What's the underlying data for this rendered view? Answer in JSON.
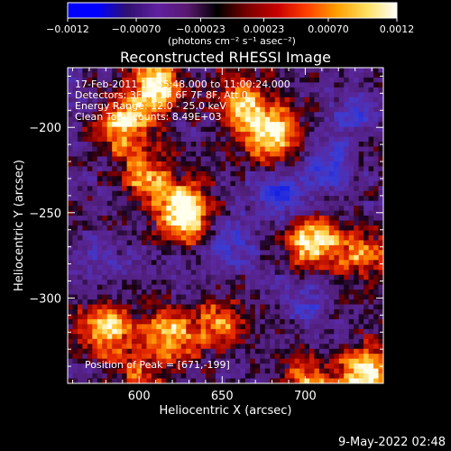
{
  "chart_data": {
    "type": "heatmap",
    "title": "Reconstructed RHESSI Image",
    "xlabel": "Heliocentric X (arcsec)",
    "ylabel": "Heliocentric Y (arcsec)",
    "xlim": [
      557,
      747
    ],
    "ylim": [
      -350,
      -165
    ],
    "x_ticks": [
      600,
      650,
      700
    ],
    "y_ticks": [
      -200,
      -250,
      -300
    ],
    "colorbar": {
      "range": [
        -0.0012,
        0.0012
      ],
      "ticks": [
        {
          "value": -0.0012,
          "label": "−0.0012"
        },
        {
          "value": -0.0007,
          "label": "−0.00070"
        },
        {
          "value": -0.00023,
          "label": "−0.00023"
        },
        {
          "value": 0.00023,
          "label": "0.00023"
        },
        {
          "value": 0.0007,
          "label": "0.00070"
        },
        {
          "value": 0.0012,
          "label": "0.0012"
        }
      ],
      "label": "(photons cm⁻² s⁻¹ asec⁻²)",
      "colors": [
        "#0000ff",
        "#0000ff",
        "#301070",
        "#6020a0",
        "#5a1870",
        "#000000",
        "#7a0000",
        "#c80000",
        "#ff4000",
        "#ffa000",
        "#ffe060",
        "#ffffff"
      ]
    },
    "annotations": [
      "17-Feb-2011 10:55:48.000 to 11:00:24.000",
      "Detectors: 3F 4F 5F 6F 7F 8F, Att 0",
      "Energy Range: 12.0 - 25.0 keV",
      "Clean     Total counts: 8.49E+03"
    ],
    "peak_label": "Position of Peak = [671,-199]",
    "hot_regions": [
      {
        "x": 610,
        "y": -175,
        "level": 0.85
      },
      {
        "x": 590,
        "y": -200,
        "level": 0.8
      },
      {
        "x": 628,
        "y": -250,
        "level": 1.0
      },
      {
        "x": 605,
        "y": -230,
        "level": 0.65
      },
      {
        "x": 680,
        "y": -203,
        "level": 0.95
      },
      {
        "x": 660,
        "y": -185,
        "level": 0.6
      },
      {
        "x": 705,
        "y": -268,
        "level": 0.85
      },
      {
        "x": 735,
        "y": -275,
        "level": 0.55
      },
      {
        "x": 580,
        "y": -318,
        "level": 0.75
      },
      {
        "x": 620,
        "y": -322,
        "level": 0.7
      },
      {
        "x": 650,
        "y": -315,
        "level": 0.5
      },
      {
        "x": 735,
        "y": -345,
        "level": 0.9
      },
      {
        "x": 700,
        "y": -350,
        "level": 0.6
      },
      {
        "x": 600,
        "y": -345,
        "level": 0.45
      }
    ],
    "cold_regions": [
      {
        "x": 685,
        "y": -240,
        "level": 0.6
      },
      {
        "x": 715,
        "y": -225,
        "level": 0.55
      },
      {
        "x": 655,
        "y": -265,
        "level": 0.4
      },
      {
        "x": 700,
        "y": -300,
        "level": 0.35
      },
      {
        "x": 580,
        "y": -280,
        "level": 0.3
      },
      {
        "x": 730,
        "y": -190,
        "level": 0.35
      }
    ]
  },
  "footer": {
    "date": "9-May-2022 02:48"
  }
}
